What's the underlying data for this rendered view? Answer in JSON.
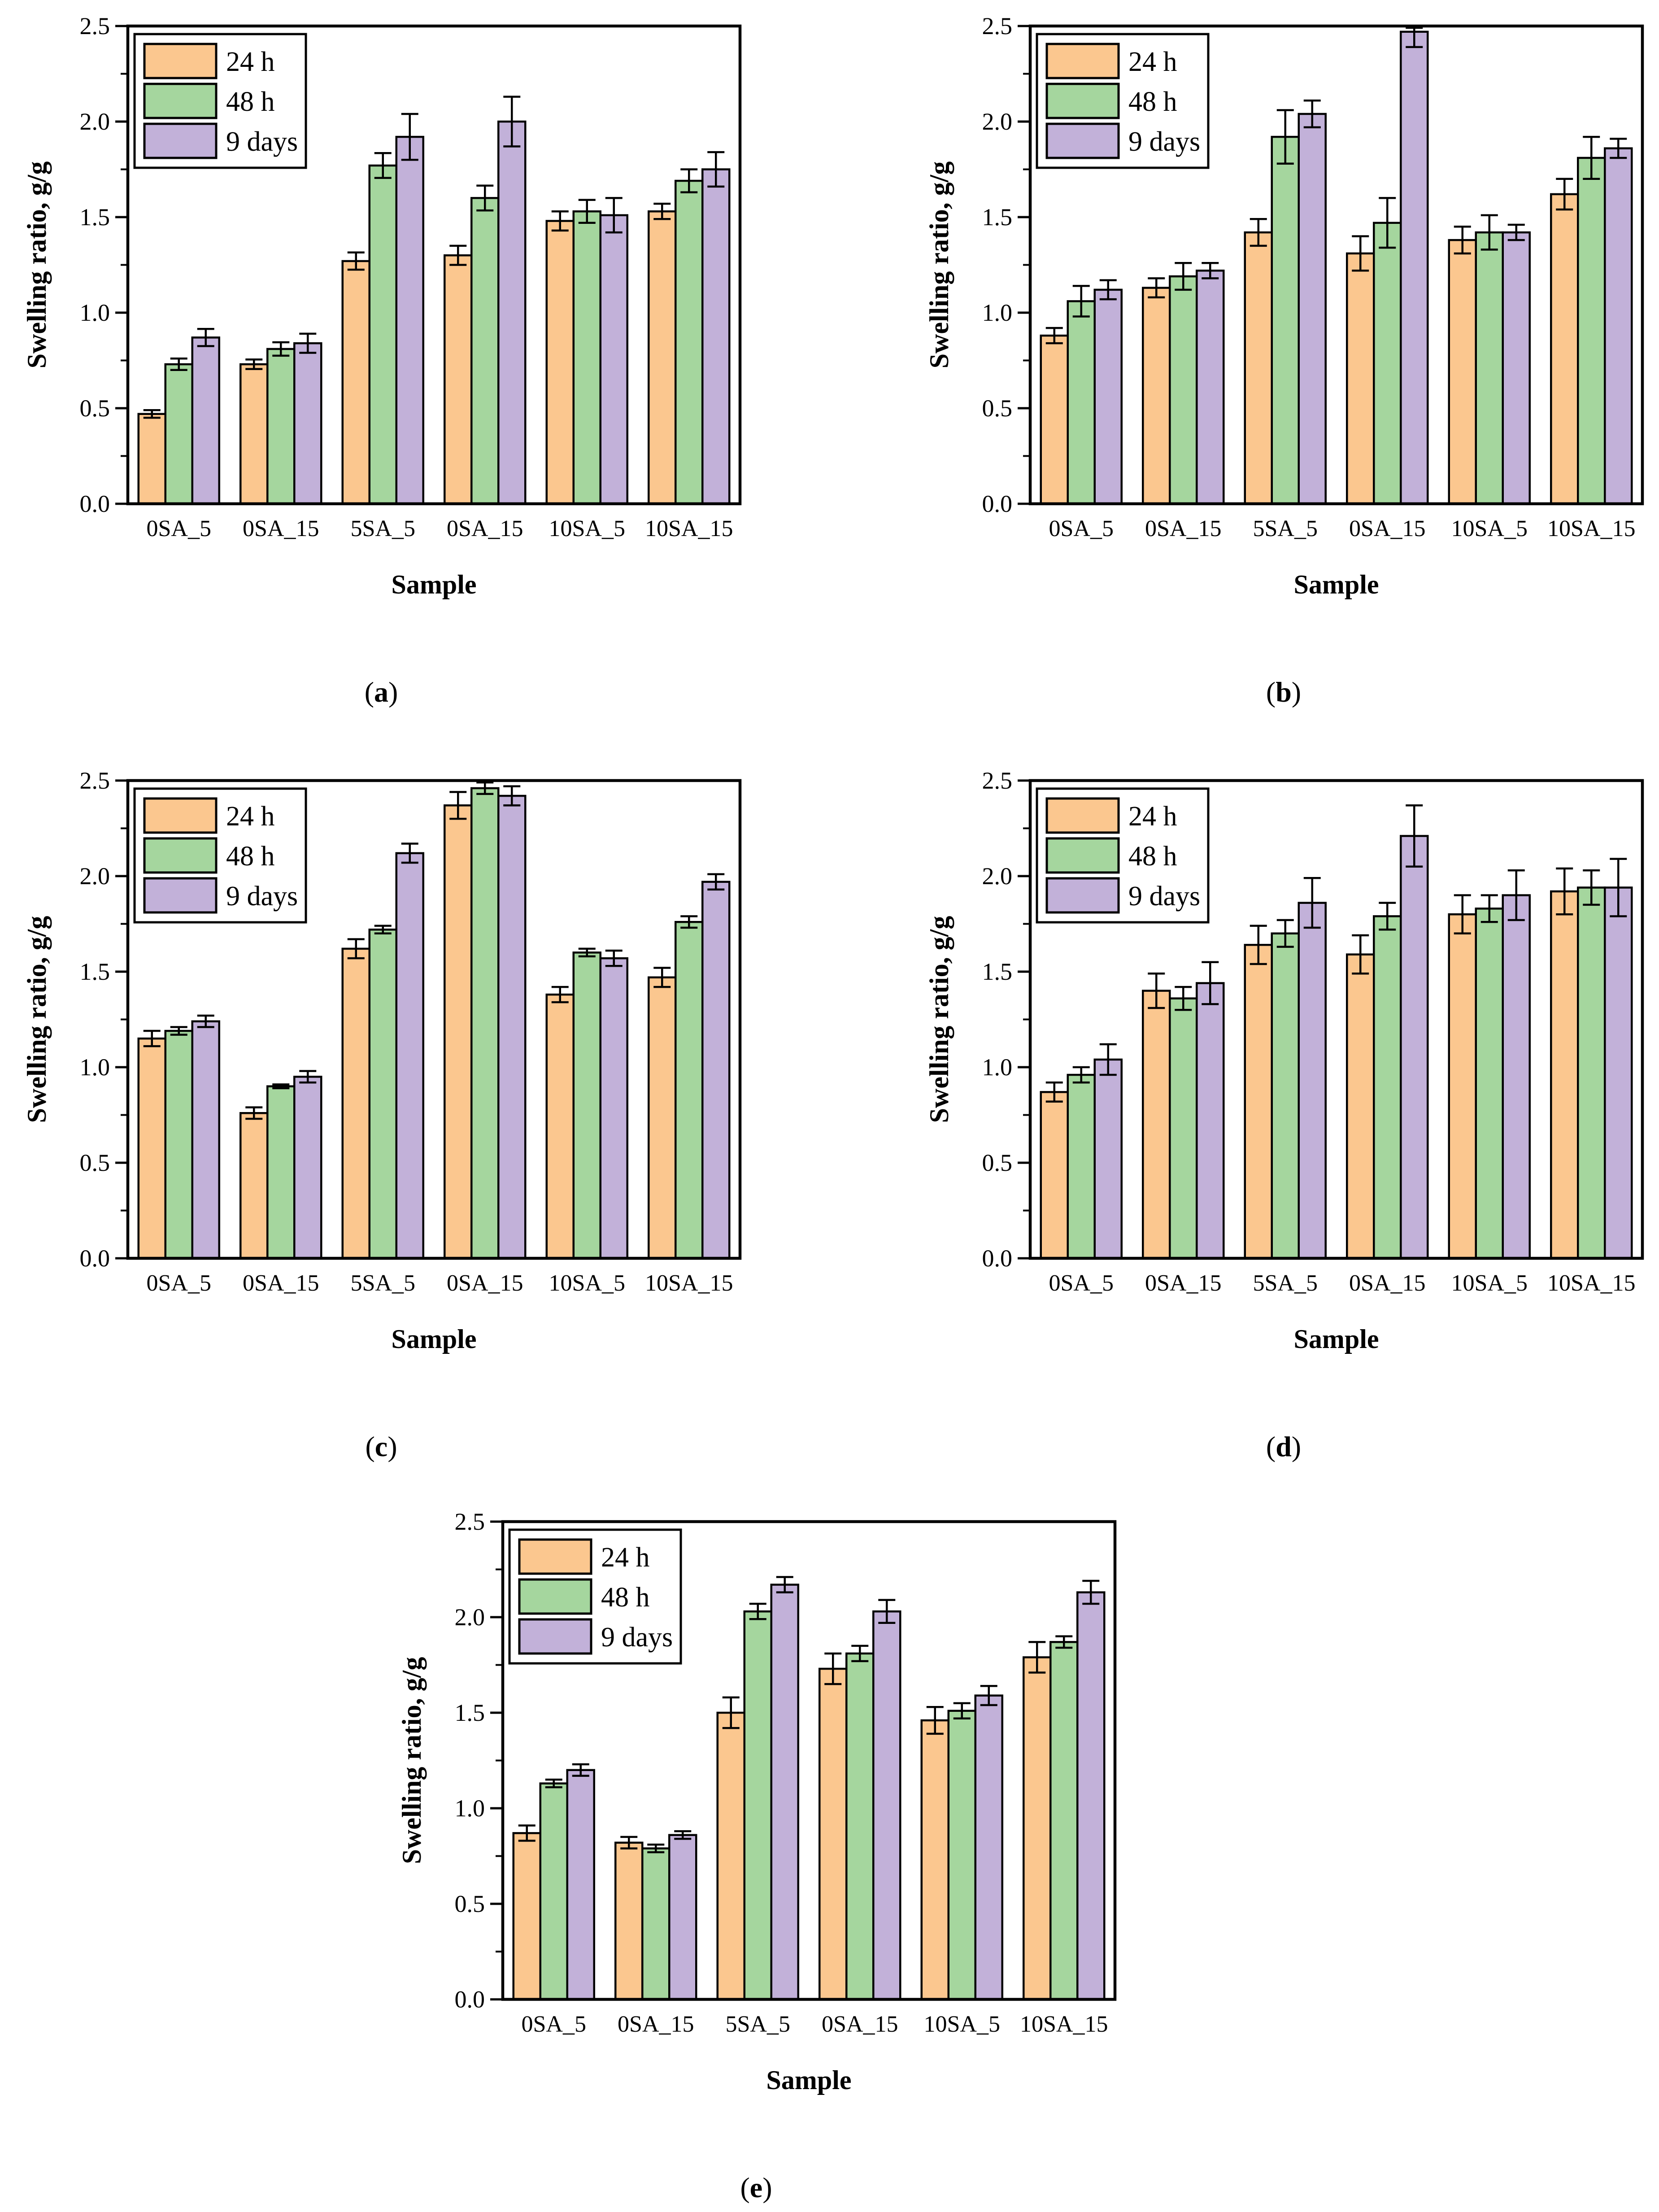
{
  "figure": {
    "background": "#ffffff",
    "axes": {
      "ylabel": "Swelling ratio, g/g",
      "xlabel": "Sample",
      "ylim": [
        0,
        2.5
      ],
      "ytick_step": 0.5,
      "yminor_step": 0.25,
      "ytick_labels": [
        "0.0",
        "0.5",
        "1.0",
        "1.5",
        "2.0",
        "2.5"
      ],
      "grid": "off"
    },
    "legend": {
      "labels": [
        "24 h",
        "48 h",
        "9 days"
      ],
      "position": "top-left"
    },
    "colors": {
      "series": [
        "#FBC78F",
        "#A5D69E",
        "#C2B1D9"
      ],
      "bar_stroke": "#000000",
      "axis": "#000000"
    },
    "categories": [
      "0SA_5",
      "0SA_15",
      "5SA_5",
      "0SA_15",
      "10SA_5",
      "10SA_15"
    ]
  },
  "chart_data": [
    {
      "panel": "a",
      "type": "bar",
      "categories": [
        "0SA_5",
        "0SA_15",
        "5SA_5",
        "0SA_15",
        "10SA_5",
        "10SA_15"
      ],
      "series": [
        {
          "name": "24 h",
          "values": [
            0.47,
            0.73,
            1.27,
            1.3,
            1.48,
            1.53
          ],
          "errors": [
            0.02,
            0.025,
            0.045,
            0.05,
            0.05,
            0.04
          ]
        },
        {
          "name": "48 h",
          "values": [
            0.73,
            0.81,
            1.77,
            1.6,
            1.53,
            1.69
          ],
          "errors": [
            0.03,
            0.035,
            0.065,
            0.065,
            0.06,
            0.06
          ]
        },
        {
          "name": "9 days",
          "values": [
            0.87,
            0.84,
            1.92,
            2.0,
            1.51,
            1.75
          ],
          "errors": [
            0.045,
            0.05,
            0.12,
            0.13,
            0.09,
            0.09
          ]
        }
      ]
    },
    {
      "panel": "b",
      "type": "bar",
      "categories": [
        "0SA_5",
        "0SA_15",
        "5SA_5",
        "0SA_15",
        "10SA_5",
        "10SA_15"
      ],
      "series": [
        {
          "name": "24 h",
          "values": [
            0.88,
            1.13,
            1.42,
            1.31,
            1.38,
            1.62
          ],
          "errors": [
            0.04,
            0.05,
            0.07,
            0.09,
            0.07,
            0.08
          ]
        },
        {
          "name": "48 h",
          "values": [
            1.06,
            1.19,
            1.92,
            1.47,
            1.42,
            1.81
          ],
          "errors": [
            0.08,
            0.07,
            0.14,
            0.13,
            0.09,
            0.11
          ]
        },
        {
          "name": "9 days",
          "values": [
            1.12,
            1.22,
            2.04,
            2.47,
            1.42,
            1.86
          ],
          "errors": [
            0.05,
            0.04,
            0.07,
            0.08,
            0.04,
            0.05
          ]
        }
      ]
    },
    {
      "panel": "c",
      "type": "bar",
      "categories": [
        "0SA_5",
        "0SA_15",
        "5SA_5",
        "0SA_15",
        "10SA_5",
        "10SA_15"
      ],
      "series": [
        {
          "name": "24 h",
          "values": [
            1.15,
            0.76,
            1.62,
            2.37,
            1.38,
            1.47
          ],
          "errors": [
            0.04,
            0.03,
            0.05,
            0.07,
            0.04,
            0.05
          ]
        },
        {
          "name": "48 h",
          "values": [
            1.19,
            0.9,
            1.72,
            2.46,
            1.6,
            1.76
          ],
          "errors": [
            0.02,
            0.01,
            0.02,
            0.03,
            0.02,
            0.03
          ]
        },
        {
          "name": "9 days",
          "values": [
            1.24,
            0.95,
            2.12,
            2.42,
            1.57,
            1.97
          ],
          "errors": [
            0.03,
            0.03,
            0.05,
            0.05,
            0.04,
            0.04
          ]
        }
      ]
    },
    {
      "panel": "d",
      "type": "bar",
      "categories": [
        "0SA_5",
        "0SA_15",
        "5SA_5",
        "0SA_15",
        "10SA_5",
        "10SA_15"
      ],
      "series": [
        {
          "name": "24 h",
          "values": [
            0.87,
            1.4,
            1.64,
            1.59,
            1.8,
            1.92
          ],
          "errors": [
            0.05,
            0.09,
            0.1,
            0.1,
            0.1,
            0.12
          ]
        },
        {
          "name": "48 h",
          "values": [
            0.96,
            1.36,
            1.7,
            1.79,
            1.83,
            1.94
          ],
          "errors": [
            0.04,
            0.06,
            0.07,
            0.07,
            0.07,
            0.09
          ]
        },
        {
          "name": "9 days",
          "values": [
            1.04,
            1.44,
            1.86,
            2.21,
            1.9,
            1.94
          ],
          "errors": [
            0.08,
            0.11,
            0.13,
            0.16,
            0.13,
            0.15
          ]
        }
      ]
    },
    {
      "panel": "e",
      "type": "bar",
      "categories": [
        "0SA_5",
        "0SA_15",
        "5SA_5",
        "0SA_15",
        "10SA_5",
        "10SA_15"
      ],
      "series": [
        {
          "name": "24 h",
          "values": [
            0.87,
            0.82,
            1.5,
            1.73,
            1.46,
            1.79
          ],
          "errors": [
            0.04,
            0.03,
            0.08,
            0.08,
            0.07,
            0.08
          ]
        },
        {
          "name": "48 h",
          "values": [
            1.13,
            0.79,
            2.03,
            1.81,
            1.51,
            1.87
          ],
          "errors": [
            0.02,
            0.02,
            0.04,
            0.04,
            0.04,
            0.03
          ]
        },
        {
          "name": "9 days",
          "values": [
            1.2,
            0.86,
            2.17,
            2.03,
            1.59,
            2.13
          ],
          "errors": [
            0.03,
            0.02,
            0.04,
            0.06,
            0.05,
            0.06
          ]
        }
      ]
    }
  ]
}
